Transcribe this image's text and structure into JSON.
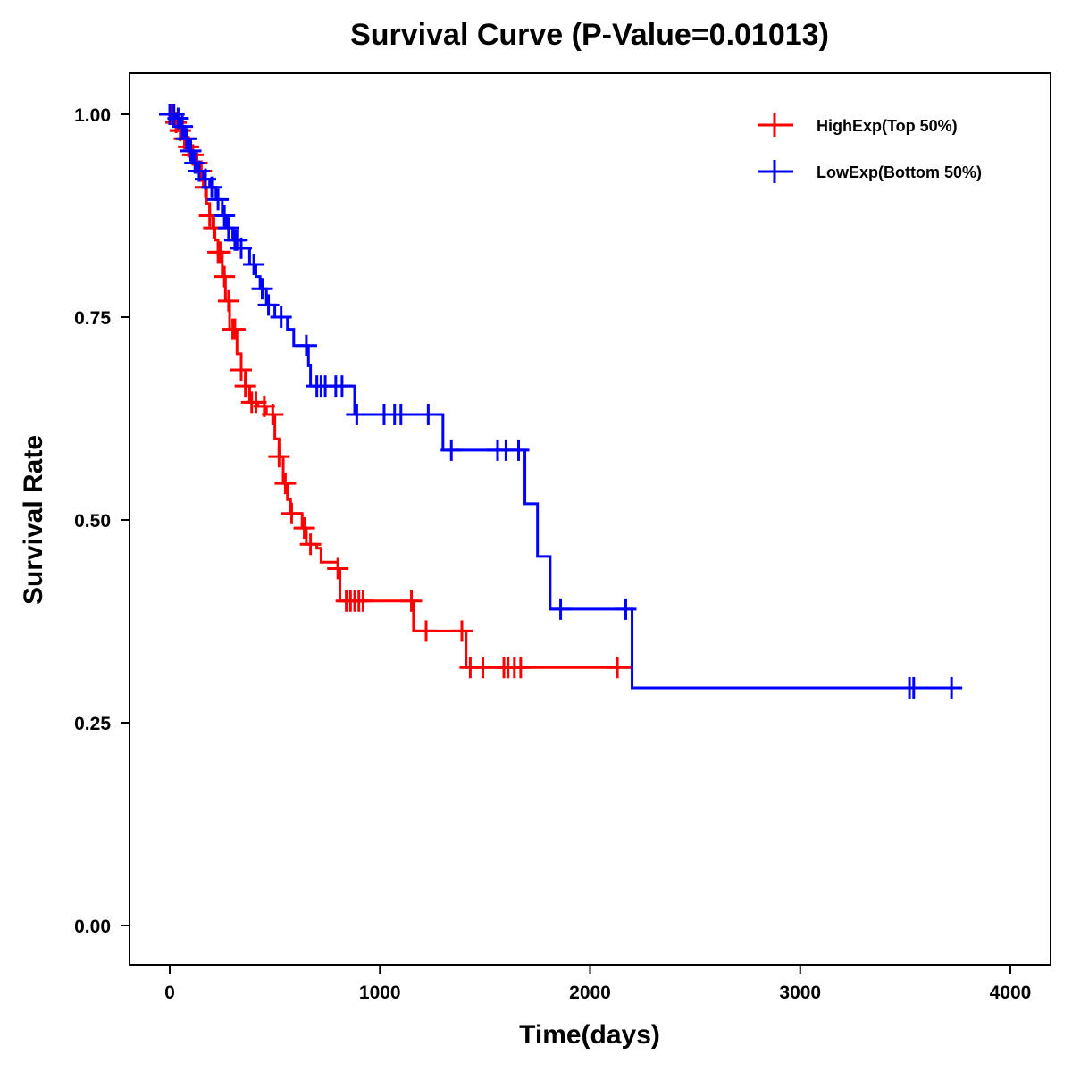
{
  "chart_data": {
    "type": "line",
    "subtype": "kaplan-meier-step",
    "title": "Survival Curve (P-Value=0.01013)",
    "xlabel": "Time(days)",
    "ylabel": "Survival Rate",
    "xlim": [
      -200,
      4200
    ],
    "ylim": [
      -0.05,
      1.05
    ],
    "x_ticks": [
      0,
      1000,
      2000,
      3000,
      4000
    ],
    "x_tick_labels": [
      "0",
      "1000",
      "2000",
      "3000",
      "4000"
    ],
    "y_ticks": [
      0,
      0.25,
      0.5,
      0.75,
      1.0
    ],
    "y_tick_labels": [
      "0.00",
      "0.25",
      "0.50",
      "0.75",
      "1.00"
    ],
    "grid": false,
    "legend": {
      "position": "top-right",
      "entries": [
        {
          "label": "HighExp(Top 50%)",
          "color": "#ff0000",
          "marker": "plus"
        },
        {
          "label": "LowExp(Bottom 50%)",
          "color": "#0000ff",
          "marker": "plus"
        }
      ]
    },
    "series": [
      {
        "name": "HighExp(Top 50%)",
        "color": "#ff0000",
        "steps": [
          [
            0,
            1.0
          ],
          [
            20,
            0.99
          ],
          [
            40,
            0.98
          ],
          [
            60,
            0.97
          ],
          [
            80,
            0.96
          ],
          [
            100,
            0.95
          ],
          [
            120,
            0.94
          ],
          [
            140,
            0.93
          ],
          [
            160,
            0.91
          ],
          [
            175,
            0.89
          ],
          [
            190,
            0.875
          ],
          [
            205,
            0.86
          ],
          [
            215,
            0.845
          ],
          [
            230,
            0.83
          ],
          [
            250,
            0.8
          ],
          [
            265,
            0.77
          ],
          [
            285,
            0.735
          ],
          [
            320,
            0.705
          ],
          [
            340,
            0.685
          ],
          [
            360,
            0.665
          ],
          [
            380,
            0.645
          ],
          [
            420,
            0.64
          ],
          [
            460,
            0.63
          ],
          [
            500,
            0.6
          ],
          [
            520,
            0.578
          ],
          [
            540,
            0.545
          ],
          [
            560,
            0.525
          ],
          [
            575,
            0.508
          ],
          [
            630,
            0.49
          ],
          [
            650,
            0.47
          ],
          [
            700,
            0.465
          ],
          [
            720,
            0.448
          ],
          [
            800,
            0.44
          ],
          [
            810,
            0.4
          ],
          [
            1160,
            0.363
          ],
          [
            1410,
            0.318
          ]
        ],
        "end_time": 2200,
        "censor_times": [
          10,
          30,
          50,
          70,
          90,
          110,
          130,
          150,
          170,
          190,
          210,
          230,
          240,
          260,
          280,
          300,
          310,
          340,
          360,
          390,
          410,
          450,
          490,
          520,
          550,
          580,
          640,
          670,
          800,
          840,
          860,
          880,
          900,
          920,
          1150,
          1220,
          1390,
          1430,
          1490,
          1590,
          1610,
          1640,
          1670,
          2130
        ]
      },
      {
        "name": "LowExp(Bottom 50%)",
        "color": "#0000ff",
        "steps": [
          [
            0,
            1.0
          ],
          [
            30,
            0.995
          ],
          [
            50,
            0.985
          ],
          [
            70,
            0.97
          ],
          [
            90,
            0.955
          ],
          [
            110,
            0.94
          ],
          [
            130,
            0.93
          ],
          [
            160,
            0.92
          ],
          [
            190,
            0.91
          ],
          [
            220,
            0.895
          ],
          [
            250,
            0.875
          ],
          [
            270,
            0.86
          ],
          [
            300,
            0.845
          ],
          [
            340,
            0.835
          ],
          [
            380,
            0.815
          ],
          [
            410,
            0.8
          ],
          [
            430,
            0.785
          ],
          [
            460,
            0.765
          ],
          [
            500,
            0.75
          ],
          [
            560,
            0.735
          ],
          [
            590,
            0.715
          ],
          [
            660,
            0.69
          ],
          [
            670,
            0.665
          ],
          [
            880,
            0.63
          ],
          [
            1300,
            0.586
          ],
          [
            1690,
            0.52
          ],
          [
            1750,
            0.455
          ],
          [
            1810,
            0.39
          ],
          [
            2200,
            0.293
          ]
        ],
        "end_time": 3740,
        "censor_times": [
          0,
          20,
          40,
          60,
          80,
          100,
          120,
          140,
          170,
          200,
          230,
          260,
          280,
          310,
          320,
          340,
          400,
          440,
          470,
          530,
          650,
          700,
          720,
          740,
          790,
          820,
          890,
          1020,
          1070,
          1100,
          1230,
          1340,
          1560,
          1600,
          1660,
          1860,
          2170,
          3520,
          3540,
          3720
        ]
      }
    ]
  }
}
